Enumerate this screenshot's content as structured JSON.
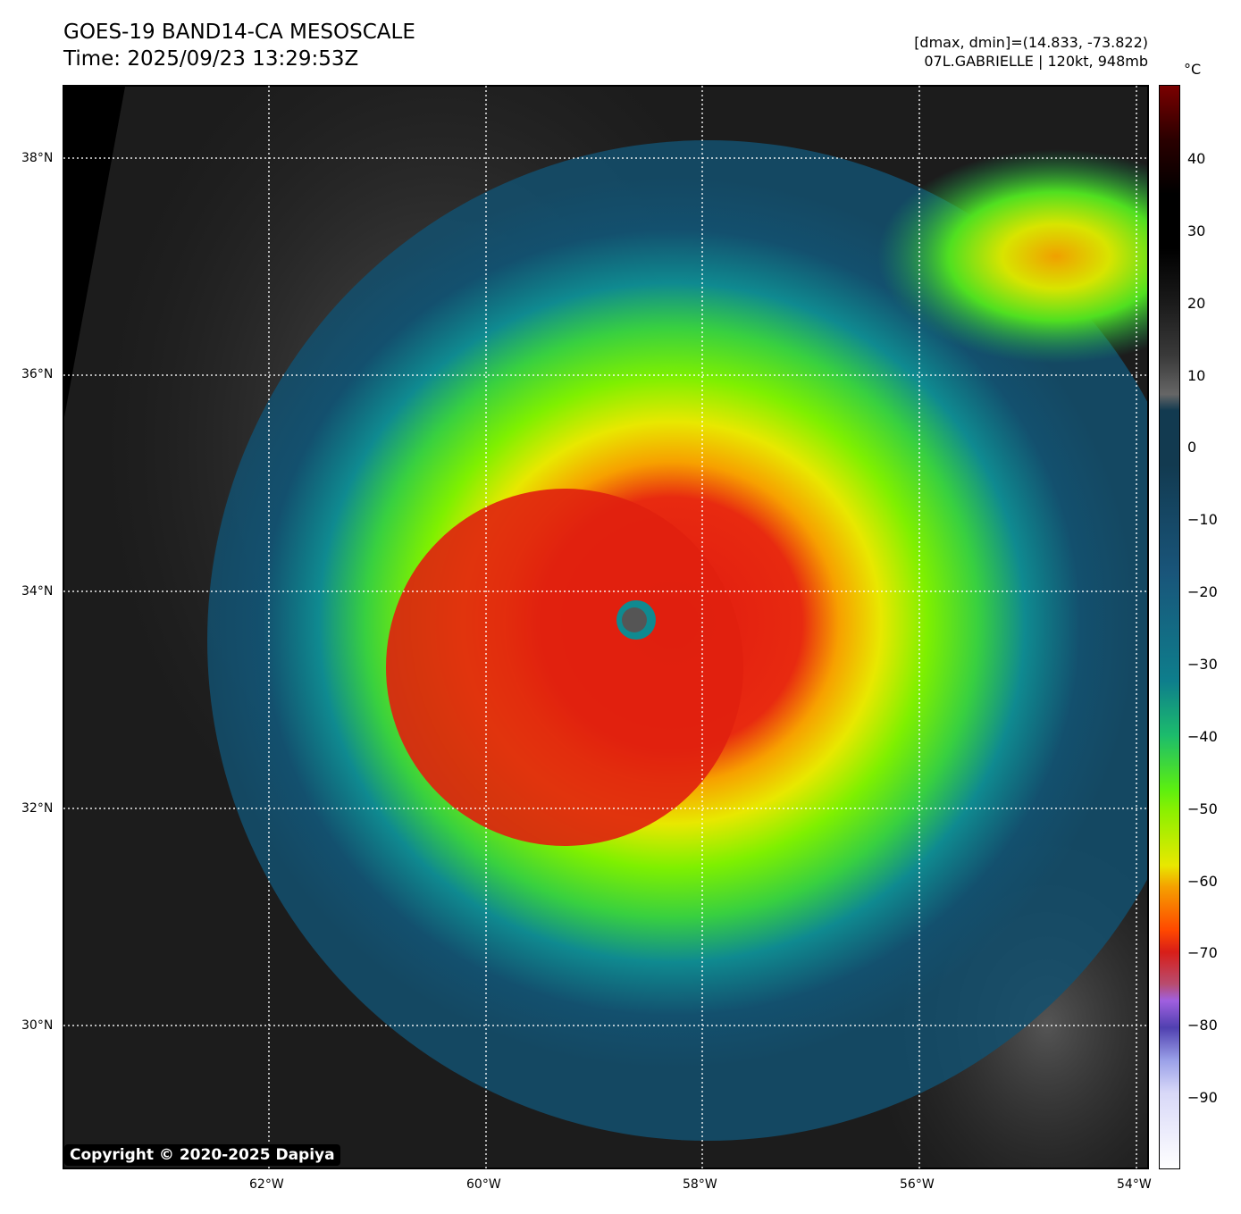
{
  "header": {
    "title": "GOES-19 BAND14-CA MESOSCALE",
    "time": "Time: 2025/09/23 13:29:53Z",
    "range": "[dmax, dmin]=(14.833, -73.822)",
    "storm": "07L.GABRIELLE | 120kt, 948mb"
  },
  "colorbar": {
    "unit": "°C",
    "range": [
      -100,
      50
    ],
    "ticks": [
      "40",
      "30",
      "20",
      "10",
      "0",
      "−10",
      "−20",
      "−30",
      "−40",
      "−50",
      "−60",
      "−70",
      "−80",
      "−90"
    ]
  },
  "axes": {
    "lat_ticks": [
      "38°N",
      "36°N",
      "34°N",
      "32°N",
      "30°N"
    ],
    "lon_ticks": [
      "62°W",
      "60°W",
      "58°W",
      "56°W",
      "54°W"
    ]
  },
  "copyright": "Copyright © 2020-2025 Dapiya"
}
